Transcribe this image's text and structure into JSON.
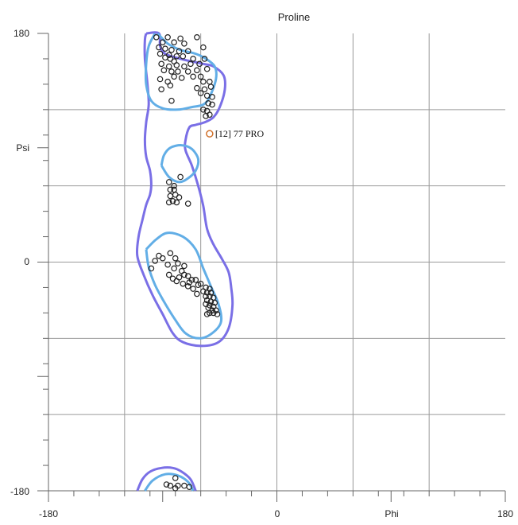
{
  "chart_data": {
    "type": "scatter",
    "title": "Proline",
    "xlabel": "Phi",
    "ylabel": "Psi",
    "xlim": [
      -180,
      180
    ],
    "ylim": [
      -180,
      180
    ],
    "x_tick_labels": [
      "-180",
      "0",
      "Phi",
      "180"
    ],
    "y_tick_labels": [
      "180",
      "Psi",
      "0",
      "-180"
    ],
    "grid": true,
    "colors": {
      "points": "#222222",
      "outlier": "#d0702a",
      "allowed_contour": "#7a6fe6",
      "favored_contour": "#62aee6",
      "grid": "#9a9a9a"
    },
    "annotations": [
      {
        "text": "[12]   77 PRO",
        "x": -53,
        "y": 101
      }
    ],
    "contours": {
      "allowed": [
        [
          [
            -103,
            180
          ],
          [
            -93,
            180
          ],
          [
            -92,
            170
          ],
          [
            -88,
            164
          ],
          [
            -76,
            160
          ],
          [
            -58,
            156
          ],
          [
            -50,
            154
          ],
          [
            -42,
            147
          ],
          [
            -41,
            136
          ],
          [
            -45,
            122
          ],
          [
            -50,
            114
          ],
          [
            -57,
            110
          ],
          [
            -64,
            108
          ],
          [
            -69,
            106
          ],
          [
            -72,
            96
          ],
          [
            -72,
            88
          ],
          [
            -67,
            76
          ],
          [
            -62,
            60
          ],
          [
            -58,
            44
          ],
          [
            -55,
            26
          ],
          [
            -50,
            14
          ],
          [
            -43,
            2
          ],
          [
            -38,
            -8
          ],
          [
            -36,
            -20
          ],
          [
            -35,
            -34
          ],
          [
            -38,
            -52
          ],
          [
            -46,
            -63
          ],
          [
            -60,
            -66
          ],
          [
            -74,
            -63
          ],
          [
            -82,
            -56
          ],
          [
            -90,
            -41
          ],
          [
            -98,
            -26
          ],
          [
            -105,
            -10
          ],
          [
            -110,
            5
          ],
          [
            -109,
            20
          ],
          [
            -106,
            33
          ],
          [
            -103,
            45
          ],
          [
            -100,
            53
          ],
          [
            -99,
            61
          ],
          [
            -100,
            72
          ],
          [
            -103,
            83
          ],
          [
            -104,
            96
          ],
          [
            -103,
            110
          ],
          [
            -101,
            124
          ],
          [
            -102,
            140
          ],
          [
            -104,
            160
          ],
          [
            -104,
            175
          ],
          [
            -103,
            180
          ]
        ],
        [
          [
            -110,
            -180
          ],
          [
            -106,
            -171
          ],
          [
            -100,
            -165
          ],
          [
            -91,
            -162
          ],
          [
            -82,
            -162
          ],
          [
            -75,
            -165
          ],
          [
            -68,
            -171
          ],
          [
            -64,
            -180
          ]
        ]
      ],
      "favored": [
        [
          [
            -94,
            180
          ],
          [
            -86,
            172
          ],
          [
            -76,
            167
          ],
          [
            -64,
            164
          ],
          [
            -56,
            160
          ],
          [
            -49,
            154
          ],
          [
            -48,
            144
          ],
          [
            -53,
            130
          ],
          [
            -58,
            124
          ],
          [
            -67,
            122
          ],
          [
            -78,
            120
          ],
          [
            -90,
            121
          ],
          [
            -99,
            127
          ],
          [
            -103,
            140
          ],
          [
            -103,
            156
          ],
          [
            -101,
            170
          ],
          [
            -96,
            180
          ]
        ],
        [
          [
            -91,
            76
          ],
          [
            -85,
            67
          ],
          [
            -77,
            63
          ],
          [
            -70,
            66
          ],
          [
            -64,
            72
          ],
          [
            -62,
            81
          ],
          [
            -67,
            89
          ],
          [
            -75,
            92
          ],
          [
            -84,
            90
          ],
          [
            -89,
            84
          ],
          [
            -91,
            76
          ]
        ],
        [
          [
            -103,
            10
          ],
          [
            -101,
            -4
          ],
          [
            -96,
            -18
          ],
          [
            -89,
            -31
          ],
          [
            -81,
            -44
          ],
          [
            -72,
            -56
          ],
          [
            -61,
            -60
          ],
          [
            -51,
            -56
          ],
          [
            -44,
            -47
          ],
          [
            -46,
            -33
          ],
          [
            -52,
            -19
          ],
          [
            -58,
            -5
          ],
          [
            -64,
            10
          ],
          [
            -74,
            20
          ],
          [
            -86,
            23
          ],
          [
            -95,
            18
          ],
          [
            -103,
            10
          ]
        ],
        [
          [
            -104,
            -180
          ],
          [
            -98,
            -172
          ],
          [
            -88,
            -167
          ],
          [
            -78,
            -168
          ],
          [
            -70,
            -173
          ],
          [
            -66,
            -180
          ]
        ]
      ]
    },
    "points": [
      [
        -95,
        177
      ],
      [
        -86,
        177
      ],
      [
        -76,
        176
      ],
      [
        -63,
        177
      ],
      [
        -90,
        173
      ],
      [
        -81,
        173
      ],
      [
        -73,
        172
      ],
      [
        -58,
        169
      ],
      [
        -93,
        169
      ],
      [
        -88,
        168
      ],
      [
        -83,
        167
      ],
      [
        -77,
        166
      ],
      [
        -70,
        166
      ],
      [
        -92,
        164
      ],
      [
        -85,
        163
      ],
      [
        -79,
        162
      ],
      [
        -74,
        162
      ],
      [
        -88,
        161
      ],
      [
        -84,
        160
      ],
      [
        -81,
        158
      ],
      [
        -66,
        160
      ],
      [
        -57,
        160
      ],
      [
        -91,
        156
      ],
      [
        -85,
        154
      ],
      [
        -79,
        155
      ],
      [
        -73,
        154
      ],
      [
        -68,
        156
      ],
      [
        -61,
        156
      ],
      [
        -89,
        151
      ],
      [
        -83,
        150
      ],
      [
        -78,
        150
      ],
      [
        -70,
        150
      ],
      [
        -63,
        151
      ],
      [
        -55,
        152
      ],
      [
        -81,
        146
      ],
      [
        -75,
        145
      ],
      [
        -66,
        146
      ],
      [
        -60,
        146
      ],
      [
        -92,
        144
      ],
      [
        -86,
        142
      ],
      [
        -58,
        142
      ],
      [
        -53,
        142
      ],
      [
        -84,
        139
      ],
      [
        -63,
        137
      ],
      [
        -57,
        136
      ],
      [
        -52,
        138
      ],
      [
        -91,
        136
      ],
      [
        -60,
        133
      ],
      [
        -55,
        131
      ],
      [
        -51,
        130
      ],
      [
        -83,
        127
      ],
      [
        -54,
        125
      ],
      [
        -51,
        124
      ],
      [
        -55,
        119
      ],
      [
        -58,
        120
      ],
      [
        -53,
        116
      ],
      [
        -56,
        115
      ],
      [
        -76,
        67
      ],
      [
        -85,
        63
      ],
      [
        -81,
        60
      ],
      [
        -84,
        57
      ],
      [
        -81,
        57
      ],
      [
        -80,
        53
      ],
      [
        -84,
        52
      ],
      [
        -77,
        51
      ],
      [
        -82,
        48
      ],
      [
        -79,
        47
      ],
      [
        -85,
        47
      ],
      [
        -70,
        46
      ],
      [
        -93,
        5
      ],
      [
        -90,
        3
      ],
      [
        -84,
        7
      ],
      [
        -96,
        1
      ],
      [
        -86,
        -2
      ],
      [
        -80,
        3
      ],
      [
        -78,
        -1
      ],
      [
        -73,
        -3
      ],
      [
        -99,
        -5
      ],
      [
        -81,
        -5
      ],
      [
        -75,
        -7
      ],
      [
        -85,
        -10
      ],
      [
        -77,
        -12
      ],
      [
        -73,
        -10
      ],
      [
        -70,
        -11
      ],
      [
        -82,
        -13
      ],
      [
        -79,
        -15
      ],
      [
        -67,
        -14
      ],
      [
        -64,
        -14
      ],
      [
        -69,
        -16
      ],
      [
        -74,
        -17
      ],
      [
        -62,
        -18
      ],
      [
        -60,
        -17
      ],
      [
        -70,
        -19
      ],
      [
        -66,
        -21
      ],
      [
        -56,
        -20
      ],
      [
        -53,
        -21
      ],
      [
        -58,
        -23
      ],
      [
        -55,
        -24
      ],
      [
        -52,
        -24
      ],
      [
        -63,
        -25
      ],
      [
        -56,
        -27
      ],
      [
        -53,
        -27
      ],
      [
        -50,
        -28
      ],
      [
        -55,
        -30
      ],
      [
        -52,
        -31
      ],
      [
        -49,
        -32
      ],
      [
        -56,
        -33
      ],
      [
        -53,
        -34
      ],
      [
        -50,
        -35
      ],
      [
        -54,
        -36
      ],
      [
        -51,
        -38
      ],
      [
        -48,
        -38
      ],
      [
        -53,
        -40
      ],
      [
        -50,
        -40
      ],
      [
        -55,
        -41
      ],
      [
        -47,
        -41
      ],
      [
        -80,
        -170
      ],
      [
        -87,
        -175
      ],
      [
        -84,
        -176
      ],
      [
        -78,
        -176
      ],
      [
        -73,
        -176
      ],
      [
        -69,
        -177
      ],
      [
        -80,
        -178
      ]
    ]
  }
}
